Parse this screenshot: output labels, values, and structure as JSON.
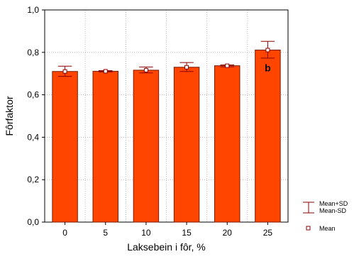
{
  "chart_data": {
    "type": "bar",
    "categories": [
      "0",
      "5",
      "10",
      "15",
      "20",
      "25"
    ],
    "mean": [
      0.71,
      0.711,
      0.716,
      0.73,
      0.737,
      0.811
    ],
    "sd_upper": [
      0.735,
      0.714,
      0.731,
      0.752,
      0.741,
      0.852
    ],
    "sd_lower": [
      0.687,
      0.708,
      0.703,
      0.71,
      0.732,
      0.773
    ],
    "ylim": [
      0.0,
      1.0
    ],
    "yticks": [
      "0,0",
      "0,2",
      "0,4",
      "0,6",
      "0,8",
      "1,0"
    ],
    "ytick_values": [
      0.0,
      0.2,
      0.4,
      0.6,
      0.8,
      1.0
    ],
    "xlabel": "Laksebein i fôr, %",
    "ylabel": "Fôrfaktor",
    "grid": true,
    "annotations": [
      {
        "category": "25",
        "text": "b"
      }
    ],
    "legend": {
      "placement": "bottom-right",
      "errorbar_label_1": "Mean+SD",
      "errorbar_label_2": "Mean-SD",
      "mean_label": "Mean"
    },
    "colors": {
      "bar_fill": "#ff4500",
      "bar_stroke": "#7a1a00",
      "errorbar": "#8b0000",
      "grid": "#bbbbbb"
    }
  }
}
